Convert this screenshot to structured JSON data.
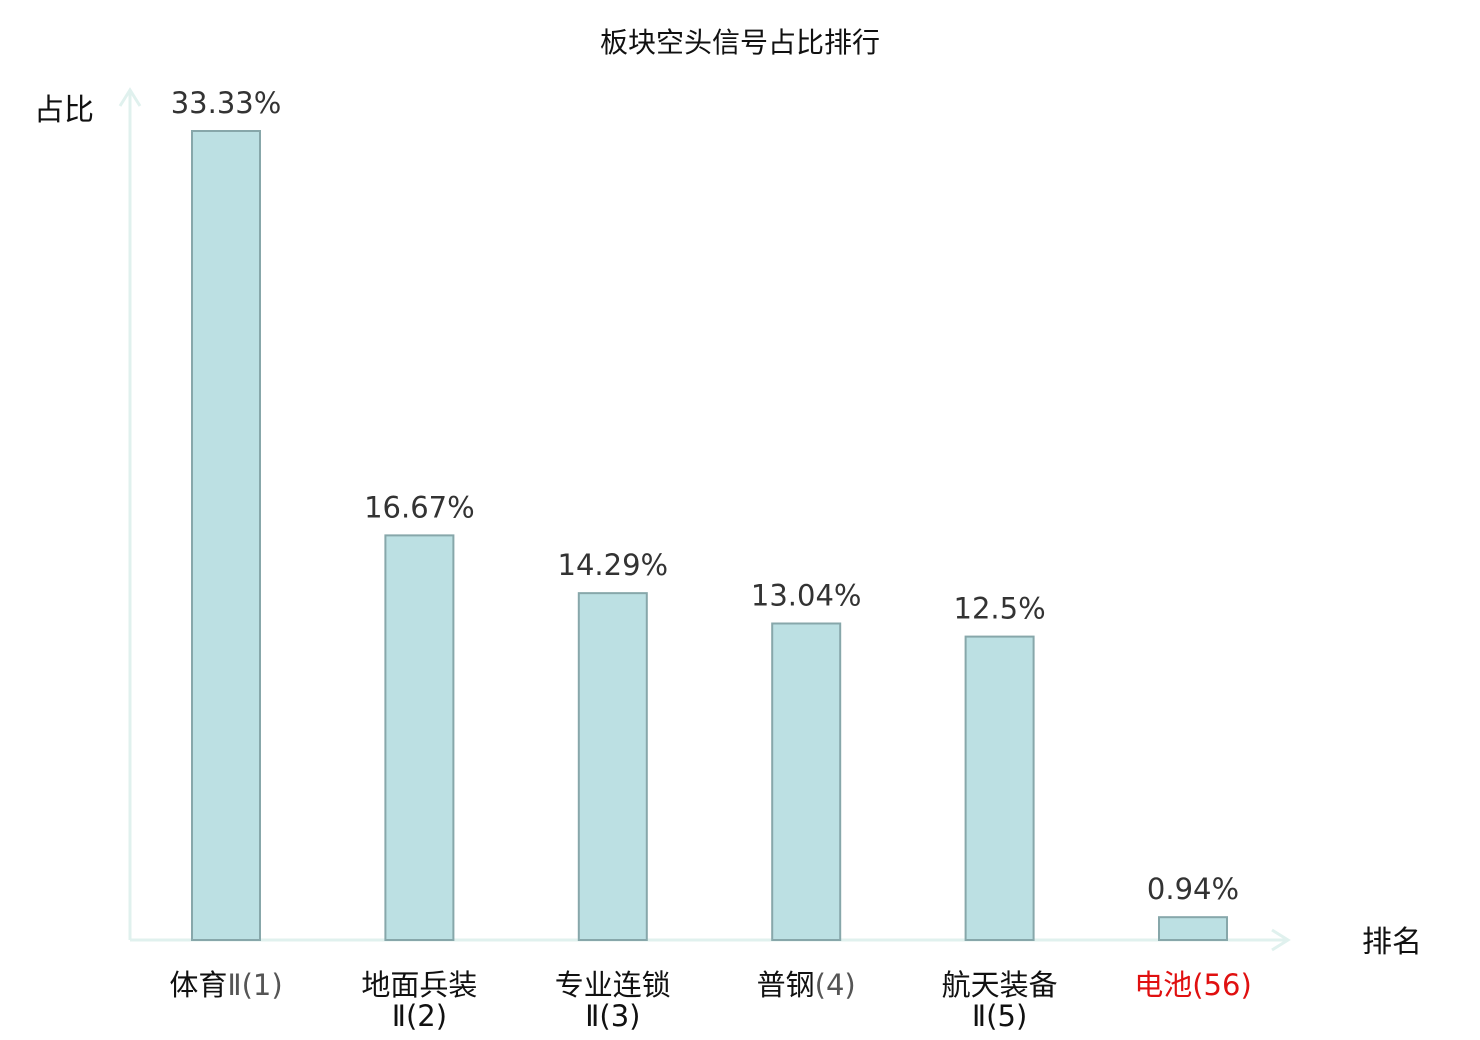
{
  "chart_data": {
    "type": "bar",
    "title": "板块空头信号占比排行",
    "ylabel": "占比",
    "xlabel": "排名",
    "ylim": [
      0,
      33.33
    ],
    "grid": false,
    "colors": {
      "bar_fill": "#bce0e3",
      "bar_stroke": "#87a7aa",
      "axis": "#e0f1ee",
      "highlight": "#e01010"
    },
    "series": [
      {
        "values": [
          33.33,
          16.67,
          14.29,
          13.04,
          12.5,
          0.94
        ],
        "value_labels": [
          "33.33%",
          "16.67%",
          "14.29%",
          "13.04%",
          "12.5%",
          "0.94%"
        ]
      }
    ],
    "categories": [
      {
        "name": "体育",
        "rank": "Ⅱ(1)",
        "highlight": false
      },
      {
        "name": "地面兵装",
        "rank": "Ⅱ(2)",
        "highlight": false
      },
      {
        "name": "专业连锁",
        "rank": "Ⅱ(3)",
        "highlight": false
      },
      {
        "name": "普钢",
        "rank": "(4)",
        "highlight": false
      },
      {
        "name": "航天装备",
        "rank": "Ⅱ(5)",
        "highlight": false
      },
      {
        "name": "电池",
        "rank": "(56)",
        "highlight": true
      }
    ]
  }
}
